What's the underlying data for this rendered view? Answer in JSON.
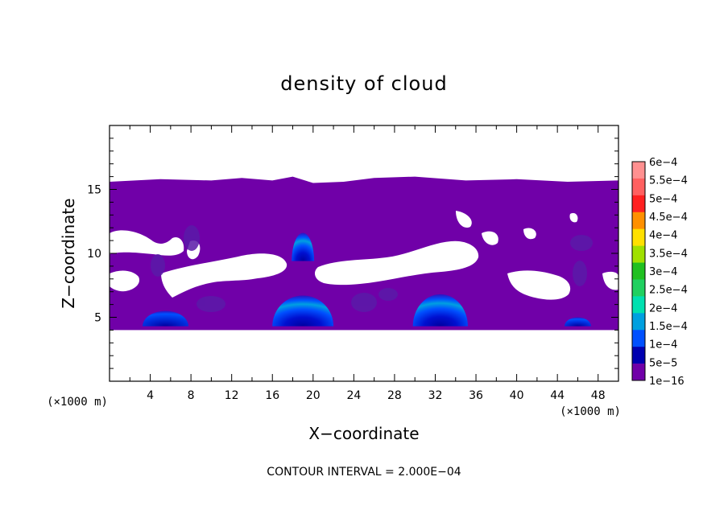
{
  "chart_data": {
    "type": "heatmap",
    "title": "density of cloud",
    "xlabel": "X−coordinate",
    "ylabel": "Z−coordinate",
    "x_unit": "(×1000 m)",
    "y_unit": "(×1000 m)",
    "xlim": [
      0,
      50
    ],
    "ylim": [
      0,
      20
    ],
    "x_ticks": [
      4,
      8,
      12,
      16,
      20,
      24,
      28,
      32,
      36,
      40,
      44,
      48
    ],
    "y_ticks": [
      5,
      10,
      15
    ],
    "contour_interval": "CONTOUR INTERVAL = 2.000E−04",
    "colorbar": {
      "labels": [
        "6e−4",
        "5.5e−4",
        "5e−4",
        "4.5e−4",
        "4e−4",
        "3.5e−4",
        "3e−4",
        "2.5e−4",
        "2e−4",
        "1.5e−4",
        "1e−4",
        "5e−5",
        "1e−16"
      ],
      "colors": [
        "#ff9090",
        "#ff6060",
        "#ff2020",
        "#ff9000",
        "#ffe000",
        "#a0e000",
        "#20c020",
        "#20d060",
        "#00e0b0",
        "#00a0e0",
        "#0050ff",
        "#0000b0",
        "#7000a8"
      ]
    },
    "cloud_layer": {
      "base_z": 4,
      "top_z": 16,
      "fill_color": "#7000a8",
      "top_profile": [
        [
          0,
          15.6
        ],
        [
          5,
          15.8
        ],
        [
          10,
          15.7
        ],
        [
          13,
          15.9
        ],
        [
          16,
          15.7
        ],
        [
          18,
          16
        ],
        [
          20,
          15.5
        ],
        [
          23,
          15.6
        ],
        [
          26,
          15.9
        ],
        [
          30,
          16
        ],
        [
          35,
          15.7
        ],
        [
          40,
          15.8
        ],
        [
          45,
          15.6
        ],
        [
          50,
          15.7
        ]
      ]
    },
    "cores": [
      {
        "x": 5.5,
        "z": 4.3,
        "width": 4.5,
        "height": 1.2,
        "max_level": "1e−4"
      },
      {
        "x": 19,
        "z": 4.3,
        "width": 6,
        "height": 2.4,
        "max_level": "1.5e−4"
      },
      {
        "x": 19,
        "z": 9.4,
        "width": 2.2,
        "height": 2.2,
        "max_level": "1e−4"
      },
      {
        "x": 32.5,
        "z": 4.3,
        "width": 5.4,
        "height": 2.5,
        "max_level": "1.5e−4"
      },
      {
        "x": 46,
        "z": 4.3,
        "width": 2.6,
        "height": 0.7,
        "max_level": "5e−5"
      }
    ]
  }
}
